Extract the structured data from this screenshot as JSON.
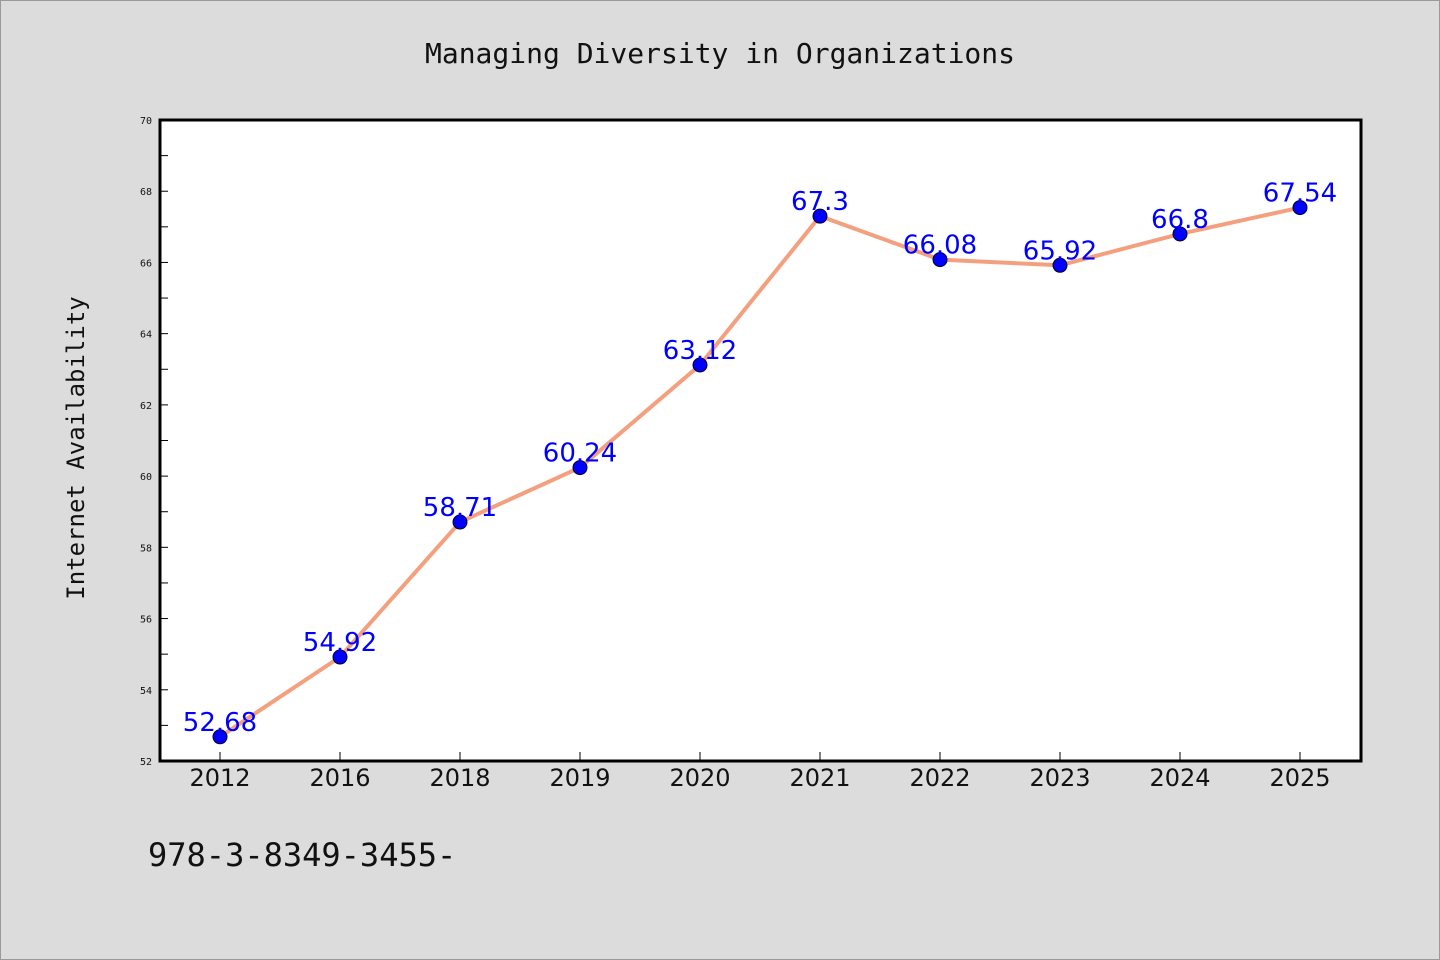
{
  "chart_data": {
    "type": "line",
    "title": "Managing Diversity in Organizations",
    "xlabel": "",
    "ylabel": "Internet Availability",
    "categories": [
      "2012",
      "2016",
      "2018",
      "2019",
      "2020",
      "2021",
      "2022",
      "2023",
      "2024",
      "2025"
    ],
    "series": [
      {
        "values": [
          52.68,
          54.92,
          58.71,
          60.24,
          63.12,
          67.3,
          66.08,
          65.92,
          66.8,
          67.54
        ],
        "labels": [
          "52.68",
          "54.92",
          "58.71",
          "60.24",
          "63.12",
          "67.3",
          "66.08",
          "65.92",
          "66.8",
          "67.54"
        ],
        "line_color": "#f4a07f",
        "marker_color": "#0000ff"
      }
    ],
    "ylim": [
      52,
      70
    ],
    "yticks": [
      "52",
      "54",
      "56",
      "58",
      "60",
      "62",
      "64",
      "66",
      "68",
      "70"
    ],
    "grid": false,
    "legend": "none"
  },
  "footer_text": "978-3-8349-3455-"
}
